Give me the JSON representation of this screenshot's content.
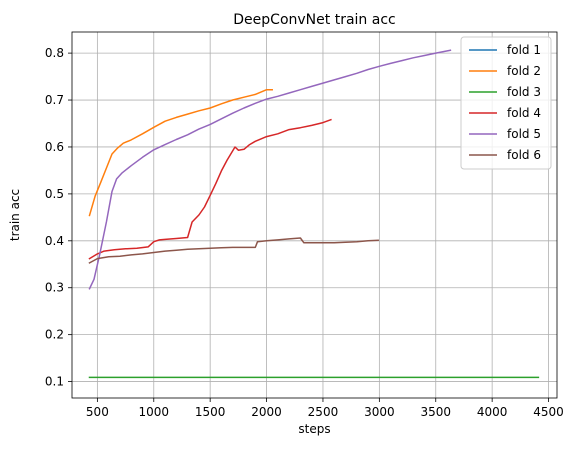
{
  "chart_data": {
    "type": "line",
    "title": "DeepConvNet train acc",
    "xlabel": "steps",
    "ylabel": "train acc",
    "xlim": [
      275,
      4575
    ],
    "ylim": [
      0.065,
      0.845
    ],
    "xticks": [
      500,
      1000,
      1500,
      2000,
      2500,
      3000,
      3500,
      4000,
      4500
    ],
    "yticks": [
      0.1,
      0.2,
      0.3,
      0.4,
      0.5,
      0.6,
      0.7,
      0.8
    ],
    "grid": true,
    "legend_position": "top-right",
    "series": [
      {
        "name": "fold 1",
        "color": "#1f77b4",
        "points": []
      },
      {
        "name": "fold 2",
        "color": "#ff7f0e",
        "points": [
          [
            430,
            0.454
          ],
          [
            480,
            0.495
          ],
          [
            530,
            0.525
          ],
          [
            580,
            0.555
          ],
          [
            630,
            0.585
          ],
          [
            680,
            0.598
          ],
          [
            730,
            0.608
          ],
          [
            800,
            0.615
          ],
          [
            900,
            0.628
          ],
          [
            1000,
            0.642
          ],
          [
            1100,
            0.655
          ],
          [
            1200,
            0.663
          ],
          [
            1300,
            0.67
          ],
          [
            1400,
            0.677
          ],
          [
            1500,
            0.683
          ],
          [
            1600,
            0.692
          ],
          [
            1700,
            0.7
          ],
          [
            1800,
            0.706
          ],
          [
            1900,
            0.712
          ],
          [
            2000,
            0.722
          ],
          [
            2050,
            0.722
          ]
        ]
      },
      {
        "name": "fold 3",
        "color": "#2ca02c",
        "points": [
          [
            430,
            0.109
          ],
          [
            1000,
            0.109
          ],
          [
            2000,
            0.109
          ],
          [
            3000,
            0.109
          ],
          [
            4000,
            0.109
          ],
          [
            4410,
            0.109
          ]
        ]
      },
      {
        "name": "fold 4",
        "color": "#d62728",
        "points": [
          [
            430,
            0.362
          ],
          [
            500,
            0.372
          ],
          [
            560,
            0.378
          ],
          [
            650,
            0.381
          ],
          [
            750,
            0.383
          ],
          [
            850,
            0.384
          ],
          [
            950,
            0.387
          ],
          [
            1000,
            0.398
          ],
          [
            1050,
            0.402
          ],
          [
            1100,
            0.403
          ],
          [
            1200,
            0.405
          ],
          [
            1300,
            0.407
          ],
          [
            1340,
            0.44
          ],
          [
            1400,
            0.455
          ],
          [
            1450,
            0.472
          ],
          [
            1500,
            0.497
          ],
          [
            1550,
            0.522
          ],
          [
            1600,
            0.549
          ],
          [
            1650,
            0.572
          ],
          [
            1720,
            0.6
          ],
          [
            1750,
            0.593
          ],
          [
            1800,
            0.595
          ],
          [
            1850,
            0.605
          ],
          [
            1900,
            0.612
          ],
          [
            2000,
            0.622
          ],
          [
            2100,
            0.628
          ],
          [
            2200,
            0.637
          ],
          [
            2300,
            0.641
          ],
          [
            2400,
            0.646
          ],
          [
            2500,
            0.652
          ],
          [
            2570,
            0.658
          ]
        ]
      },
      {
        "name": "fold 5",
        "color": "#9467bd",
        "points": [
          [
            430,
            0.298
          ],
          [
            470,
            0.318
          ],
          [
            520,
            0.37
          ],
          [
            580,
            0.44
          ],
          [
            630,
            0.505
          ],
          [
            670,
            0.532
          ],
          [
            720,
            0.545
          ],
          [
            800,
            0.56
          ],
          [
            900,
            0.578
          ],
          [
            1000,
            0.594
          ],
          [
            1100,
            0.605
          ],
          [
            1200,
            0.616
          ],
          [
            1300,
            0.626
          ],
          [
            1400,
            0.638
          ],
          [
            1500,
            0.648
          ],
          [
            1600,
            0.66
          ],
          [
            1700,
            0.672
          ],
          [
            1800,
            0.683
          ],
          [
            1900,
            0.693
          ],
          [
            2000,
            0.702
          ],
          [
            2100,
            0.708
          ],
          [
            2200,
            0.715
          ],
          [
            2300,
            0.722
          ],
          [
            2400,
            0.729
          ],
          [
            2500,
            0.736
          ],
          [
            2600,
            0.743
          ],
          [
            2700,
            0.75
          ],
          [
            2800,
            0.757
          ],
          [
            2900,
            0.765
          ],
          [
            3000,
            0.772
          ],
          [
            3100,
            0.778
          ],
          [
            3200,
            0.784
          ],
          [
            3300,
            0.79
          ],
          [
            3400,
            0.795
          ],
          [
            3500,
            0.8
          ],
          [
            3630,
            0.806
          ]
        ]
      },
      {
        "name": "fold 6",
        "color": "#8c564b",
        "points": [
          [
            430,
            0.353
          ],
          [
            500,
            0.362
          ],
          [
            600,
            0.366
          ],
          [
            700,
            0.367
          ],
          [
            800,
            0.37
          ],
          [
            900,
            0.372
          ],
          [
            1000,
            0.375
          ],
          [
            1100,
            0.378
          ],
          [
            1200,
            0.38
          ],
          [
            1300,
            0.382
          ],
          [
            1400,
            0.383
          ],
          [
            1500,
            0.384
          ],
          [
            1600,
            0.385
          ],
          [
            1700,
            0.386
          ],
          [
            1800,
            0.386
          ],
          [
            1900,
            0.386
          ],
          [
            1920,
            0.398
          ],
          [
            2000,
            0.4
          ],
          [
            2100,
            0.402
          ],
          [
            2200,
            0.404
          ],
          [
            2300,
            0.406
          ],
          [
            2330,
            0.396
          ],
          [
            2400,
            0.396
          ],
          [
            2500,
            0.396
          ],
          [
            2600,
            0.396
          ],
          [
            2700,
            0.397
          ],
          [
            2800,
            0.398
          ],
          [
            2900,
            0.4
          ],
          [
            2990,
            0.401
          ]
        ]
      }
    ]
  }
}
